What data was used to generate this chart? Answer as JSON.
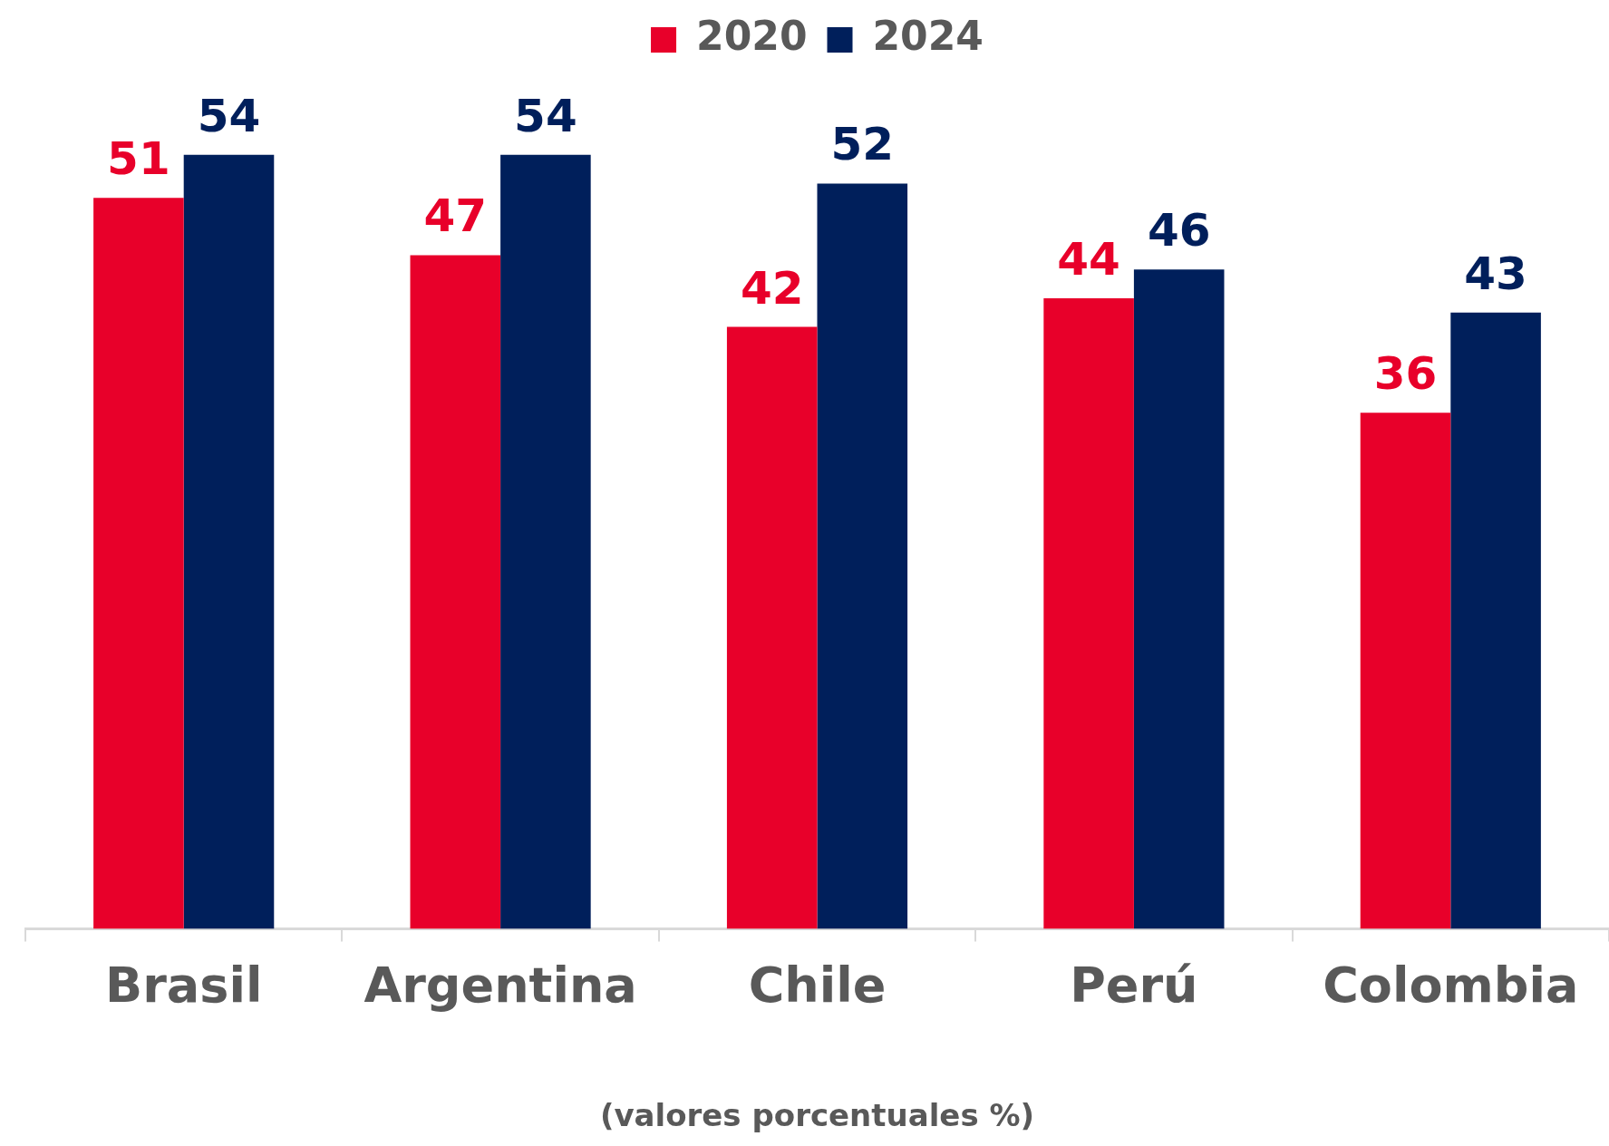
{
  "chart_data": {
    "type": "bar",
    "xlabel": "(valores porcentuales %)",
    "categories": [
      "Brasil",
      "Argentina",
      "Chile",
      "Perú",
      "Colombia"
    ],
    "series": [
      {
        "name": "2020",
        "color": "#e8002a",
        "values": [
          51,
          47,
          42,
          44,
          36
        ]
      },
      {
        "name": "2024",
        "color": "#001f5b",
        "values": [
          54,
          54,
          52,
          46,
          43
        ]
      }
    ],
    "tick_labels": "x",
    "data_labels": true,
    "legend": "top"
  }
}
